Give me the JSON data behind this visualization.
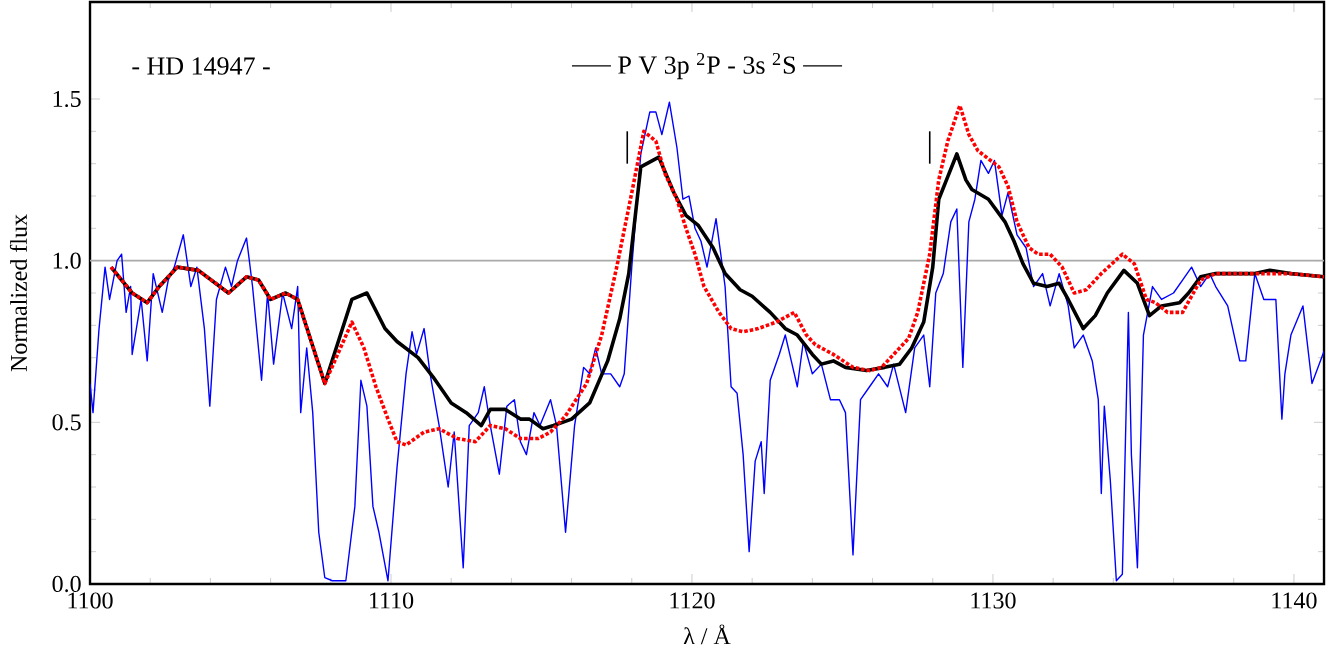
{
  "chart_data": {
    "type": "line",
    "xlabel": "λ / Å",
    "ylabel": "Normalized flux",
    "annotations": [
      "- HD 14947 -",
      "P V 3p $^{2}$P - 3s $^{2}$S"
    ],
    "xlim": [
      1100,
      1141
    ],
    "ylim": [
      0,
      1.8
    ],
    "xticks": [
      1100,
      1110,
      1120,
      1130,
      1140
    ],
    "yticks": [
      {
        "value": 0,
        "label": "0.0"
      },
      {
        "value": 0.5,
        "label": "0.5"
      },
      {
        "value": 1,
        "label": "1.0"
      },
      {
        "value": 1.5,
        "label": "1.5"
      }
    ],
    "ref_lines": [
      {
        "axis": "y",
        "value": 1,
        "color": "#aaaaaa"
      }
    ],
    "marker": "none",
    "series": [
      {
        "color": "#0000ff",
        "line_style": "solid",
        "x": [
          1100,
          1100.1,
          1100.3,
          1100.5,
          1100.65,
          1100.9,
          1101.05,
          1101.2,
          1101.35,
          1101.4,
          1101.7,
          1101.9,
          1102.1,
          1102.4,
          1102.6,
          1102.8,
          1103.1,
          1103.35,
          1103.55,
          1103.8,
          1103.98,
          1104.2,
          1104.5,
          1104.7,
          1104.9,
          1105.2,
          1105.4,
          1105.7,
          1105.9,
          1106.1,
          1106.4,
          1106.7,
          1106.9,
          1107.0,
          1107.2,
          1107.4,
          1107.6,
          1107.8,
          1108.05,
          1108.5,
          1108.8,
          1109.0,
          1109.2,
          1109.4,
          1109.6,
          1109.9,
          1110.2,
          1110.5,
          1110.7,
          1110.85,
          1111.1,
          1111.3,
          1111.6,
          1111.9,
          1112.1,
          1112.4,
          1112.6,
          1112.9,
          1113.1,
          1113.3,
          1113.6,
          1113.85,
          1114.1,
          1114.3,
          1114.5,
          1114.75,
          1114.95,
          1115.3,
          1115.5,
          1115.8,
          1116.1,
          1116.4,
          1116.6,
          1116.8,
          1117.0,
          1117.3,
          1117.6,
          1117.75,
          1118.0,
          1118.3,
          1118.6,
          1118.8,
          1119.0,
          1119.25,
          1119.5,
          1119.7,
          1119.9,
          1120.1,
          1120.3,
          1120.5,
          1120.8,
          1121.1,
          1121.3,
          1121.5,
          1121.7,
          1121.9,
          1122.1,
          1122.3,
          1122.4,
          1122.6,
          1122.9,
          1123.1,
          1123.3,
          1123.5,
          1123.7,
          1124.0,
          1124.3,
          1124.6,
          1124.9,
          1125.1,
          1125.35,
          1125.6,
          1125.9,
          1126.2,
          1126.5,
          1126.7,
          1127.1,
          1127.4,
          1127.7,
          1127.9,
          1128.1,
          1128.35,
          1128.6,
          1128.8,
          1129.0,
          1129.2,
          1129.4,
          1129.6,
          1129.85,
          1130.05,
          1130.3,
          1130.5,
          1130.8,
          1131.1,
          1131.35,
          1131.65,
          1131.9,
          1132.2,
          1132.5,
          1132.7,
          1133.0,
          1133.3,
          1133.5,
          1133.6,
          1133.7,
          1133.9,
          1134.1,
          1134.3,
          1134.5,
          1134.6,
          1134.8,
          1135.0,
          1135.3,
          1135.6,
          1136.0,
          1136.3,
          1136.6,
          1136.9,
          1137.2,
          1137.4,
          1137.8,
          1138.2,
          1138.4,
          1138.7,
          1139.0,
          1139.4,
          1139.6,
          1139.7,
          1139.9,
          1140.3,
          1140.6,
          1141
        ],
        "values": [
          0.62,
          0.53,
          0.79,
          0.98,
          0.88,
          1.0,
          1.02,
          0.84,
          0.92,
          0.71,
          0.88,
          0.69,
          0.96,
          0.84,
          0.94,
          0.98,
          1.08,
          0.92,
          0.98,
          0.79,
          0.55,
          0.88,
          0.98,
          0.92,
          1.0,
          1.07,
          0.92,
          0.63,
          0.9,
          0.68,
          0.9,
          0.79,
          0.92,
          0.53,
          0.73,
          0.53,
          0.16,
          0.02,
          0.01,
          0.01,
          0.24,
          0.63,
          0.55,
          0.24,
          0.16,
          0.01,
          0.36,
          0.65,
          0.78,
          0.71,
          0.79,
          0.65,
          0.49,
          0.3,
          0.47,
          0.05,
          0.49,
          0.53,
          0.61,
          0.49,
          0.34,
          0.55,
          0.57,
          0.44,
          0.4,
          0.53,
          0.49,
          0.57,
          0.49,
          0.16,
          0.49,
          0.67,
          0.65,
          0.73,
          0.65,
          0.65,
          0.61,
          0.65,
          0.98,
          1.33,
          1.46,
          1.46,
          1.39,
          1.49,
          1.35,
          1.19,
          1.2,
          1.1,
          1.06,
          0.98,
          1.13,
          0.92,
          0.61,
          0.59,
          0.4,
          0.1,
          0.38,
          0.44,
          0.28,
          0.63,
          0.71,
          0.77,
          0.69,
          0.61,
          0.75,
          0.65,
          0.68,
          0.57,
          0.57,
          0.53,
          0.09,
          0.57,
          0.61,
          0.65,
          0.61,
          0.68,
          0.53,
          0.73,
          0.77,
          0.61,
          0.9,
          0.96,
          1.12,
          1.16,
          0.67,
          1.12,
          1.19,
          1.31,
          1.27,
          1.31,
          1.14,
          1.21,
          1.08,
          1.04,
          0.92,
          0.96,
          0.86,
          0.96,
          0.86,
          0.73,
          0.77,
          0.69,
          0.57,
          0.28,
          0.55,
          0.32,
          0.01,
          0.03,
          0.84,
          0.4,
          0.05,
          0.77,
          0.92,
          0.88,
          0.9,
          0.94,
          0.98,
          0.92,
          0.96,
          0.92,
          0.86,
          0.69,
          0.69,
          0.96,
          0.88,
          0.88,
          0.51,
          0.65,
          0.77,
          0.86,
          0.62,
          0.72
        ]
      },
      {
        "color": "#000000",
        "line_style": "solid",
        "x": [
          1100.7,
          1101.4,
          1101.9,
          1102.3,
          1102.9,
          1103.6,
          1104.6,
          1105.2,
          1105.6,
          1106.0,
          1106.5,
          1106.9,
          1107.8,
          1108.7,
          1109.2,
          1109.8,
          1110.2,
          1110.9,
          1111.4,
          1112.0,
          1112.5,
          1113.0,
          1113.3,
          1113.8,
          1114.3,
          1114.6,
          1115.05,
          1115.4,
          1116.0,
          1116.6,
          1117.2,
          1117.6,
          1117.9,
          1118.3,
          1118.9,
          1119.4,
          1119.8,
          1120.2,
          1120.7,
          1121.1,
          1121.6,
          1122.0,
          1122.6,
          1123.1,
          1123.5,
          1124.0,
          1124.3,
          1124.7,
          1125.1,
          1125.8,
          1126.4,
          1126.9,
          1127.3,
          1127.7,
          1128.0,
          1128.2,
          1128.5,
          1128.8,
          1129.1,
          1129.3,
          1129.85,
          1130.4,
          1130.7,
          1131.0,
          1131.35,
          1131.8,
          1132.2,
          1132.5,
          1133.0,
          1133.4,
          1133.8,
          1134.35,
          1134.8,
          1135.2,
          1135.6,
          1136.2,
          1136.5,
          1136.9,
          1137.4,
          1138.2,
          1138.7,
          1139.2,
          1139.9,
          1141
        ],
        "values": [
          0.98,
          0.9,
          0.87,
          0.92,
          0.98,
          0.97,
          0.9,
          0.95,
          0.94,
          0.88,
          0.9,
          0.88,
          0.62,
          0.88,
          0.9,
          0.79,
          0.75,
          0.7,
          0.64,
          0.56,
          0.53,
          0.49,
          0.54,
          0.54,
          0.51,
          0.51,
          0.48,
          0.49,
          0.51,
          0.56,
          0.69,
          0.82,
          0.96,
          1.29,
          1.32,
          1.21,
          1.14,
          1.11,
          1.04,
          0.96,
          0.91,
          0.89,
          0.84,
          0.79,
          0.77,
          0.71,
          0.68,
          0.69,
          0.67,
          0.66,
          0.67,
          0.68,
          0.73,
          0.81,
          0.98,
          1.19,
          1.26,
          1.33,
          1.25,
          1.22,
          1.19,
          1.12,
          1.06,
          0.99,
          0.93,
          0.92,
          0.93,
          0.88,
          0.79,
          0.83,
          0.9,
          0.97,
          0.93,
          0.83,
          0.86,
          0.87,
          0.9,
          0.95,
          0.96,
          0.96,
          0.96,
          0.97,
          0.96,
          0.95
        ]
      },
      {
        "color": "#ff0000",
        "line_style": "dotted",
        "x": [
          1100.7,
          1101.4,
          1101.9,
          1102.3,
          1102.9,
          1103.6,
          1104.6,
          1105.2,
          1105.6,
          1106.0,
          1106.5,
          1106.9,
          1107.8,
          1108.7,
          1109.1,
          1109.5,
          1109.9,
          1110.2,
          1110.5,
          1111.1,
          1111.6,
          1112.2,
          1112.8,
          1113.3,
          1113.8,
          1114.3,
          1114.9,
          1115.3,
          1115.8,
          1116.5,
          1117.0,
          1117.5,
          1118.0,
          1118.4,
          1118.8,
          1119.1,
          1119.5,
          1119.8,
          1120.1,
          1120.4,
          1120.9,
          1121.3,
          1121.7,
          1122.2,
          1122.8,
          1123.4,
          1123.8,
          1124.1,
          1124.7,
          1125.35,
          1125.9,
          1126.3,
          1126.7,
          1127.2,
          1127.5,
          1127.9,
          1128.2,
          1128.5,
          1128.9,
          1129.2,
          1129.5,
          1130.2,
          1130.5,
          1130.8,
          1131.2,
          1131.5,
          1131.9,
          1132.3,
          1132.7,
          1133.1,
          1133.6,
          1134.3,
          1134.7,
          1135.1,
          1135.4,
          1135.8,
          1136.3,
          1136.9,
          1137.4,
          1138.2,
          1139.1,
          1139.9,
          1141
        ],
        "values": [
          0.98,
          0.9,
          0.87,
          0.92,
          0.98,
          0.97,
          0.9,
          0.95,
          0.94,
          0.88,
          0.9,
          0.88,
          0.62,
          0.81,
          0.73,
          0.61,
          0.51,
          0.44,
          0.43,
          0.47,
          0.48,
          0.45,
          0.44,
          0.49,
          0.48,
          0.45,
          0.45,
          0.47,
          0.52,
          0.62,
          0.77,
          0.98,
          1.21,
          1.4,
          1.37,
          1.27,
          1.19,
          1.1,
          1.02,
          0.92,
          0.84,
          0.79,
          0.78,
          0.79,
          0.81,
          0.84,
          0.77,
          0.74,
          0.71,
          0.67,
          0.66,
          0.67,
          0.71,
          0.76,
          0.84,
          1.02,
          1.25,
          1.37,
          1.48,
          1.39,
          1.34,
          1.29,
          1.23,
          1.12,
          1.04,
          1.02,
          1.02,
          0.98,
          0.9,
          0.91,
          0.96,
          1.02,
          0.99,
          0.88,
          0.87,
          0.84,
          0.84,
          0.94,
          0.96,
          0.96,
          0.96,
          0.96,
          0.95
        ]
      },
      {
        "color": "#000000",
        "line_style": "solid",
        "x": [
          1117.85,
          1117.85
        ],
        "values": [
          1.3,
          1.4
        ]
      },
      {
        "color": "#000000",
        "line_style": "solid",
        "x": [
          1127.9,
          1127.9
        ],
        "values": [
          1.3,
          1.4
        ]
      }
    ]
  }
}
